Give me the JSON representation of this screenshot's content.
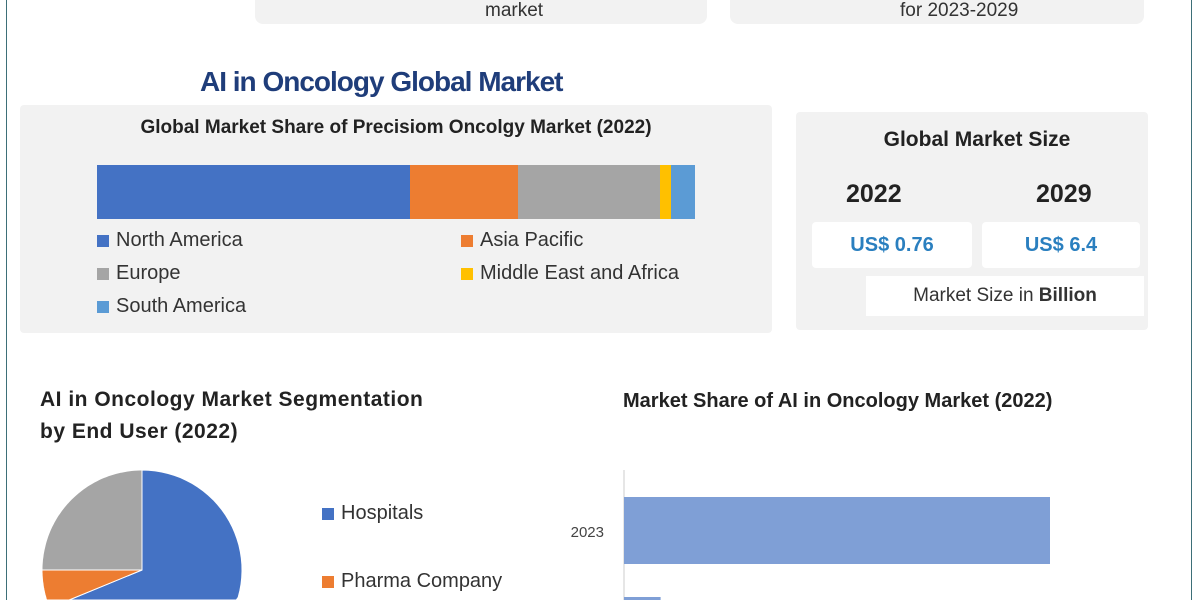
{
  "top_cards": {
    "left_text": "market",
    "right_text": "for 2023-2029"
  },
  "main_title": "AI in Oncology Global Market",
  "chart_data": [
    {
      "type": "bar",
      "stacked": true,
      "title": "Global Market Share of Precisiom Oncolgy Market (2022)",
      "categories": [
        "North America",
        "Asia Pacific",
        "Europe",
        "Middle East and Africa",
        "South America"
      ],
      "values": [
        52.3,
        18.1,
        23.7,
        1.9,
        4.0
      ],
      "colors": [
        "#4472c4",
        "#ed7d31",
        "#a5a5a5",
        "#ffc000",
        "#5b9bd5"
      ],
      "legend": "bottom"
    },
    {
      "type": "pie",
      "title": "AI in Oncology Market Segmentation by End User (2022)",
      "categories": [
        "Hospitals",
        "Pharma Company",
        ""
      ],
      "values": [
        63,
        12,
        25
      ],
      "colors": [
        "#4472c4",
        "#ed7d31",
        "#a5a5a5"
      ],
      "legend": "right"
    },
    {
      "type": "bar",
      "orientation": "horizontal",
      "title": "Market Share of AI in Oncology Market (2022)",
      "categories": [
        "2023",
        ""
      ],
      "values": [
        6.4,
        0.55
      ],
      "colors": [
        "#7f9fd6"
      ]
    }
  ],
  "market_size": {
    "title": "Global Market Size",
    "year1": "2022",
    "year2": "2029",
    "value1": "US$ 0.76",
    "value2": "US$ 6.4",
    "unit_prefix": "Market Size in ",
    "unit_bold": "Billion"
  },
  "seg_title_line1": "AI in Oncology Market Segmentation",
  "seg_title_line2": "by End User (2022)"
}
